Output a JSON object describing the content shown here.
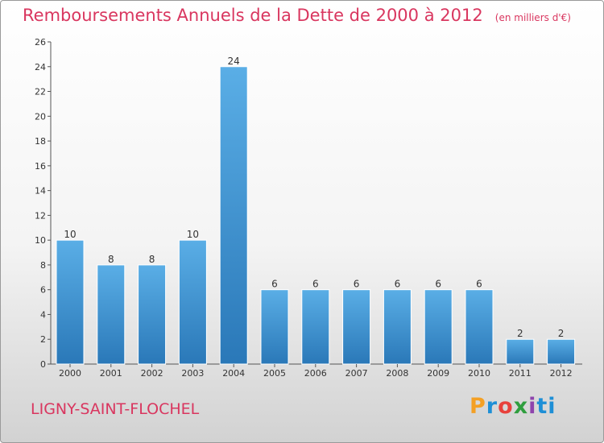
{
  "header": {
    "title": "Remboursements Annuels de la Dette de 2000 à 2012",
    "unit": "(en milliers d'€)"
  },
  "footer": {
    "town": "LIGNY-SAINT-FLOCHEL",
    "logo": "Proxiti"
  },
  "colors": {
    "title": "#d9365f",
    "bar_top": "#5aaee6",
    "bar_bottom": "#2a78b8",
    "axis": "#555555"
  },
  "chart_data": {
    "type": "bar",
    "title": "Remboursements Annuels de la Dette de 2000 à 2012",
    "ylabel": "",
    "xlabel": "",
    "categories": [
      "2000",
      "2001",
      "2002",
      "2003",
      "2004",
      "2005",
      "2006",
      "2007",
      "2008",
      "2009",
      "2010",
      "2011",
      "2012"
    ],
    "values": [
      10,
      8,
      8,
      10,
      24,
      6,
      6,
      6,
      6,
      6,
      6,
      2,
      2
    ],
    "ylim": [
      0,
      26
    ],
    "yticks": [
      0,
      2,
      4,
      6,
      8,
      10,
      12,
      14,
      16,
      18,
      20,
      22,
      24,
      26
    ],
    "grid": false,
    "legend": "none"
  }
}
